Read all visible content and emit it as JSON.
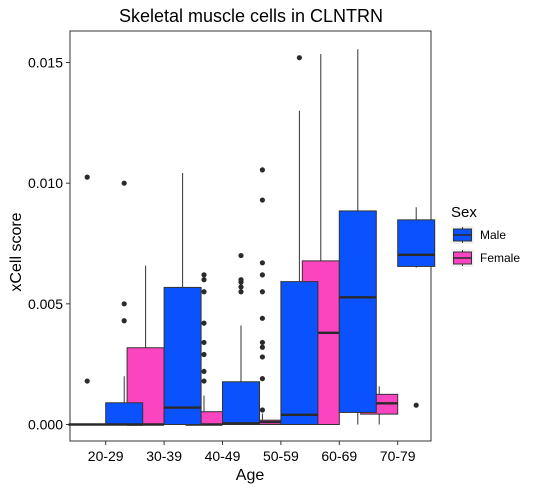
{
  "chart_data": {
    "type": "boxplot",
    "title": "Skeletal muscle cells in CLNTRN",
    "xlabel": "Age",
    "ylabel": "xCell score",
    "categories": [
      "20-29",
      "30-39",
      "40-49",
      "50-59",
      "60-69",
      "70-79"
    ],
    "ylim": [
      -0.0006,
      0.0162
    ],
    "yticks": [
      0.0,
      0.005,
      0.01,
      0.015
    ],
    "ytick_labels": [
      "0.000",
      "0.005",
      "0.010",
      "0.015"
    ],
    "grid": false,
    "legend": {
      "title": "Sex",
      "placement": "right",
      "entries": [
        {
          "name": "Male",
          "color": "#0a52fd"
        },
        {
          "name": "Female",
          "color": "#fb45c0"
        }
      ]
    },
    "series": [
      {
        "name": "Female",
        "color": "#fb45c0",
        "boxes": [
          {
            "category": "20-29",
            "whisker_low": 0.0,
            "q1": 0.0,
            "median": 0.0,
            "q3": 0.0,
            "whisker_high": 0.0,
            "outliers": [
              0.0018,
              0.01025
            ]
          },
          {
            "category": "30-39",
            "whisker_low": 0.0,
            "q1": 0.0,
            "median": 0.0,
            "q3": 0.00318,
            "whisker_high": 0.00658,
            "outliers": []
          },
          {
            "category": "40-49",
            "whisker_low": 0.0,
            "q1": 0.0,
            "median": 0.0,
            "q3": 0.00053,
            "whisker_high": 0.0012,
            "outliers": [
              0.0018,
              0.0022,
              0.0029,
              0.0034,
              0.0042,
              0.0055,
              0.006,
              0.0062
            ]
          },
          {
            "category": "50-59",
            "whisker_low": 0.0,
            "q1": 0.0,
            "median": 0.0001,
            "q3": 0.00018,
            "whisker_high": 0.00045,
            "outliers": [
              0.0006,
              0.0019,
              0.0028,
              0.0032,
              0.0034,
              0.0044,
              0.0055,
              0.0062,
              0.0067,
              0.0093,
              0.01055
            ]
          },
          {
            "category": "60-69",
            "whisker_low": 0.0,
            "q1": 0.0,
            "median": 0.0038,
            "q3": 0.00678,
            "whisker_high": 0.01535,
            "outliers": []
          },
          {
            "category": "70-79",
            "whisker_low": 0.0,
            "q1": 0.00043,
            "median": 0.00088,
            "q3": 0.00125,
            "whisker_high": 0.00158,
            "outliers": []
          }
        ]
      },
      {
        "name": "Male",
        "color": "#0a52fd",
        "boxes": [
          {
            "category": "20-29",
            "whisker_low": 0.0,
            "q1": 0.0,
            "median": 0.0,
            "q3": 0.0009,
            "whisker_high": 0.002,
            "outliers": [
              0.0043,
              0.005,
              0.01
            ]
          },
          {
            "category": "30-39",
            "whisker_low": 0.0,
            "q1": 0.0,
            "median": 0.0007,
            "q3": 0.00568,
            "whisker_high": 0.01042,
            "outliers": []
          },
          {
            "category": "40-49",
            "whisker_low": 0.0,
            "q1": 0.0,
            "median": 5e-05,
            "q3": 0.00177,
            "whisker_high": 0.0041,
            "outliers": [
              0.0055,
              0.0057,
              0.0059,
              0.006,
              0.007
            ]
          },
          {
            "category": "50-59",
            "whisker_low": 0.0,
            "q1": 0.0,
            "median": 0.0004,
            "q3": 0.00592,
            "whisker_high": 0.013,
            "outliers": [
              0.0152
            ]
          },
          {
            "category": "60-69",
            "whisker_low": 0.0,
            "q1": 0.0005,
            "median": 0.00527,
            "q3": 0.00885,
            "whisker_high": 0.01555,
            "outliers": []
          },
          {
            "category": "70-79",
            "whisker_low": 0.0065,
            "q1": 0.00655,
            "median": 0.00703,
            "q3": 0.00848,
            "whisker_high": 0.009,
            "outliers": [
              0.0008
            ]
          }
        ]
      }
    ]
  }
}
